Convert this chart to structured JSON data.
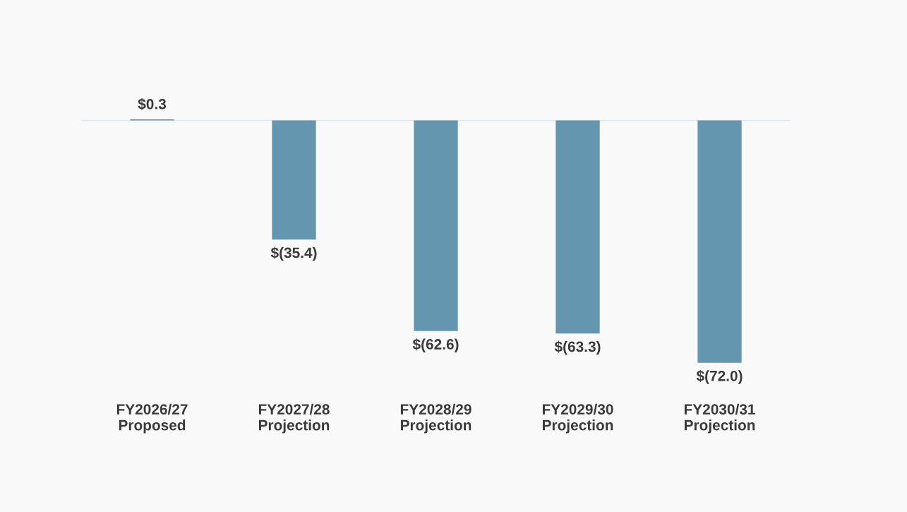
{
  "chart_data": {
    "type": "bar",
    "categories": [
      "FY2026/27\nProposed",
      "FY2027/28\nProjection",
      "FY2028/29\nProjection",
      "FY2029/30\nProjection",
      "FY2030/31\nProjection"
    ],
    "values": [
      0.3,
      -35.4,
      -62.6,
      -63.3,
      -72.0
    ],
    "value_labels": [
      "$0.3",
      "$(35.4)",
      "$(62.6)",
      "$(63.3)",
      "$(72.0)"
    ],
    "color": "#6496b0",
    "grid": false,
    "legend": false
  }
}
